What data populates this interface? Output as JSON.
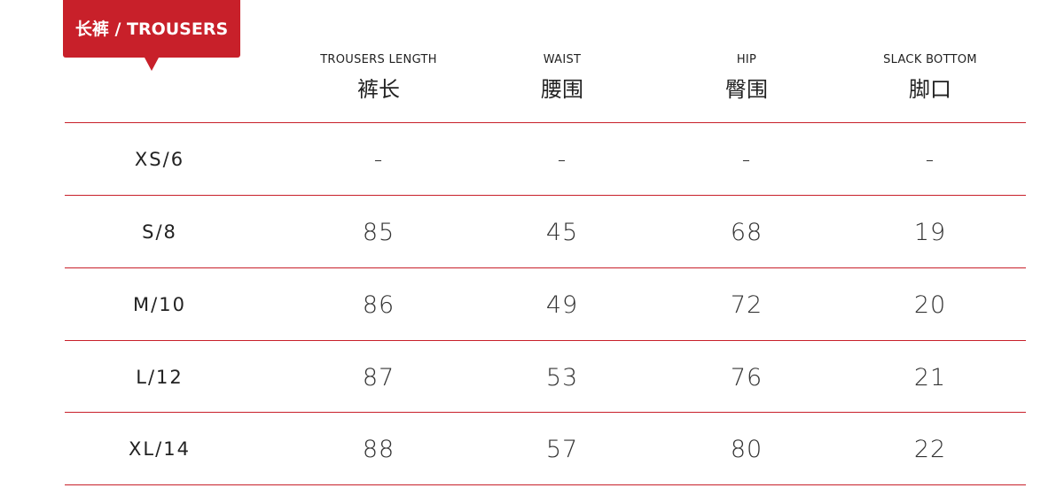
{
  "title": "长裤 / TROUSERS",
  "accent_color": "#c8202a",
  "columns": [
    {
      "en": "TROUSERS LENGTH",
      "cn": "裤长"
    },
    {
      "en": "WAIST",
      "cn": "腰围"
    },
    {
      "en": "HIP",
      "cn": "臀围"
    },
    {
      "en": "SLACK BOTTOM",
      "cn": "脚口"
    }
  ],
  "rows": [
    {
      "size": "XS/6",
      "values": [
        "-",
        "-",
        "-",
        "-"
      ]
    },
    {
      "size": "S/8",
      "values": [
        "85",
        "45",
        "68",
        "19"
      ]
    },
    {
      "size": "M/10",
      "values": [
        "86",
        "49",
        "72",
        "20"
      ]
    },
    {
      "size": "L/12",
      "values": [
        "87",
        "53",
        "76",
        "21"
      ]
    },
    {
      "size": "XL/14",
      "values": [
        "88",
        "57",
        "80",
        "22"
      ]
    }
  ]
}
